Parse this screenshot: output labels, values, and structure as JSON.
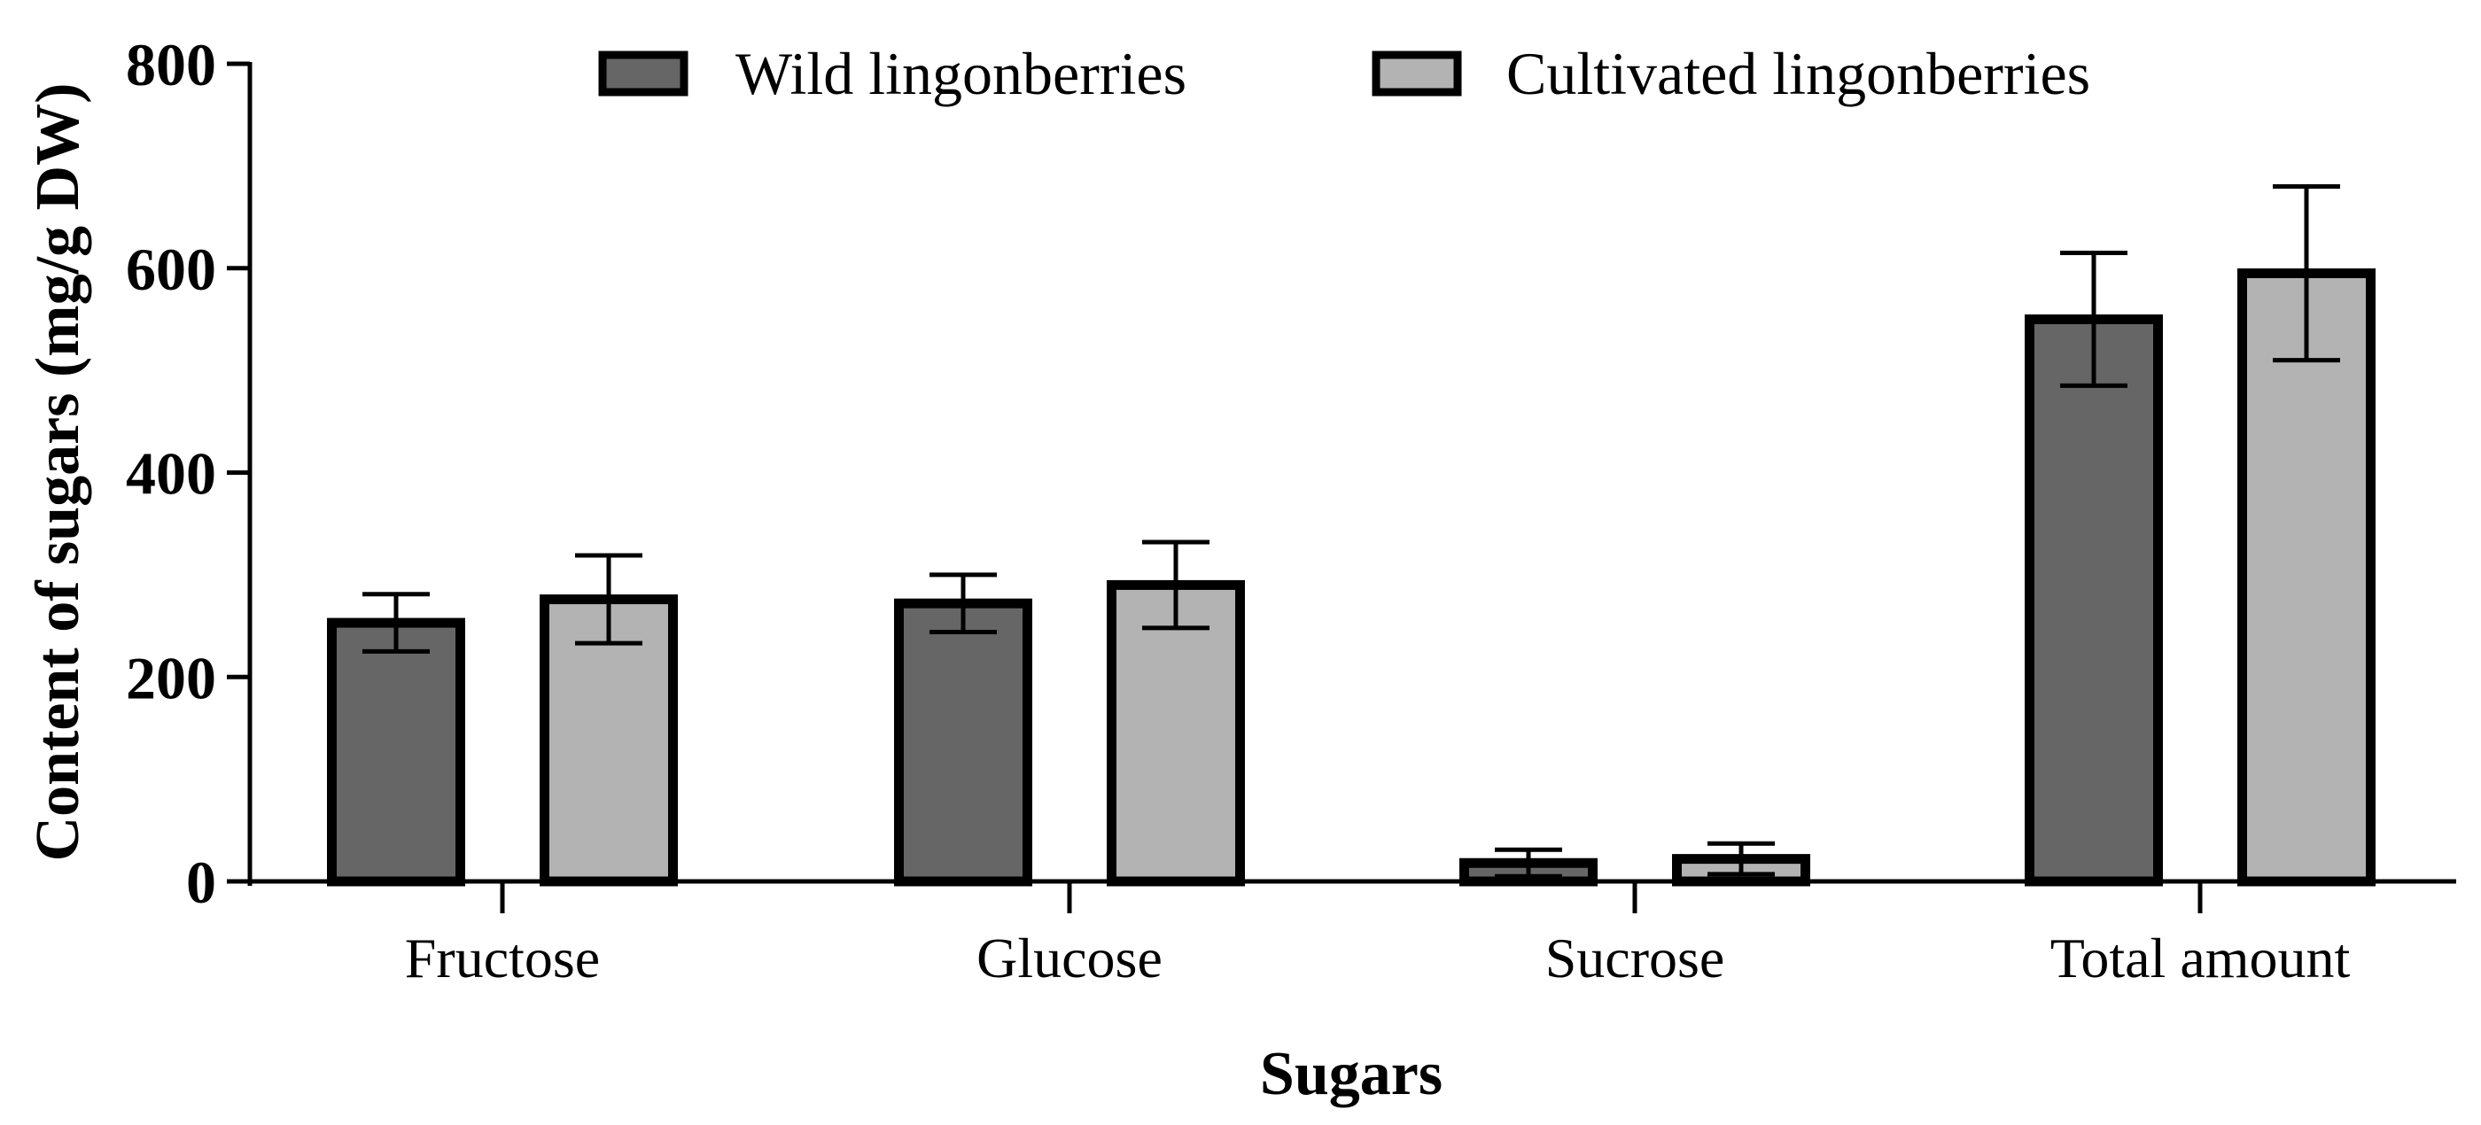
{
  "chart_data": {
    "type": "bar",
    "title": "",
    "xlabel": "Sugars",
    "ylabel": "Content of sugars (mg/g DW)",
    "categories": [
      "Fructose",
      "Glucose",
      "Sucrose",
      "Total amount"
    ],
    "series": [
      {
        "name": "Wild lingonberries",
        "color": "#666666",
        "values": [
          253,
          272,
          18,
          550
        ],
        "errors": [
          28,
          28,
          13,
          65
        ]
      },
      {
        "name": "Cultivated lingonberries",
        "color": "#b3b3b3",
        "values": [
          276,
          290,
          22,
          595
        ],
        "errors": [
          43,
          42,
          15,
          85
        ]
      }
    ],
    "ylim": [
      0,
      800
    ],
    "yticks": [
      0,
      200,
      400,
      600,
      800
    ],
    "grid": false,
    "legend_position": "top"
  }
}
